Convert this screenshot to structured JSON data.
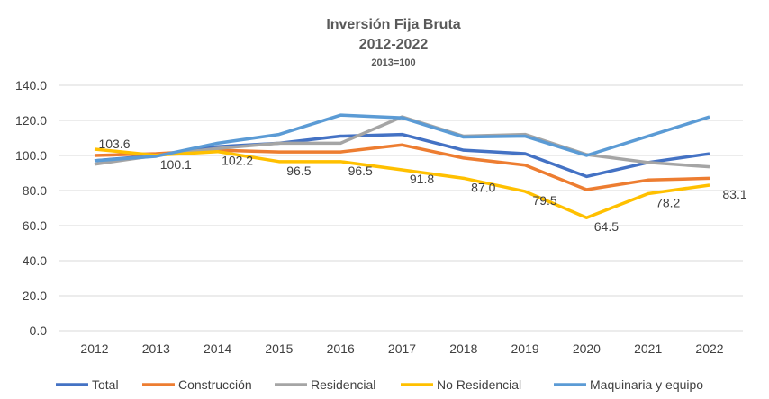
{
  "chart_data": {
    "type": "line",
    "title": "Inversión Fija Bruta",
    "subtitle": "2012-2022",
    "note": "2013=100",
    "xlabel": "",
    "ylabel": "",
    "categories": [
      "2012",
      "2013",
      "2014",
      "2015",
      "2016",
      "2017",
      "2018",
      "2019",
      "2020",
      "2021",
      "2022"
    ],
    "ylim": [
      0,
      140
    ],
    "yticks": [
      "0.0",
      "20.0",
      "40.0",
      "60.0",
      "80.0",
      "100.0",
      "120.0",
      "140.0"
    ],
    "grid": true,
    "legend_position": "bottom",
    "series": [
      {
        "name": "Total",
        "color": "#4472C4",
        "values": [
          97,
          100,
          105,
          107,
          111,
          112,
          103,
          101,
          88,
          96,
          101
        ]
      },
      {
        "name": "Construcción",
        "color": "#ED7D31",
        "values": [
          100,
          101,
          103,
          102,
          102,
          106,
          98.5,
          94.5,
          80.5,
          86,
          87
        ]
      },
      {
        "name": "Residencial",
        "color": "#A5A5A5",
        "values": [
          95,
          100,
          104,
          107,
          107,
          122,
          111,
          112,
          100.5,
          96,
          93.5
        ]
      },
      {
        "name": "No Residencial",
        "color": "#FFC000",
        "values": [
          103.6,
          100.1,
          102.2,
          96.5,
          96.5,
          91.8,
          87.0,
          79.5,
          64.5,
          78.2,
          83.1
        ],
        "data_labels": [
          "103.6",
          "100.1",
          "102.2",
          "96.5",
          "96.5",
          "91.8",
          "87.0",
          "79.5",
          "64.5",
          "78.2",
          "83.1"
        ]
      },
      {
        "name": "Maquinaria y equipo",
        "color": "#5B9BD5",
        "values": [
          97,
          99.5,
          107,
          112,
          123,
          121.5,
          110.5,
          111,
          100,
          111,
          122
        ]
      }
    ]
  }
}
